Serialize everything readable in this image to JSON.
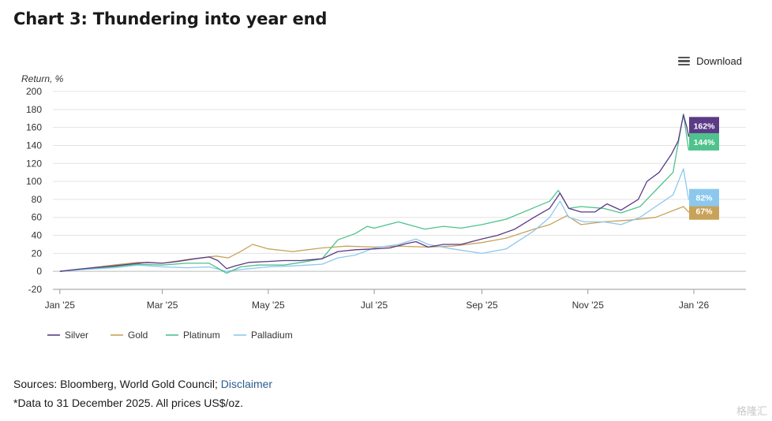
{
  "title": "Chart 3:  Thundering into year end",
  "download_label": "Download",
  "footer": {
    "sources_prefix": "Sources: Bloomberg, World Gold Council; ",
    "disclaimer_link": "Disclaimer",
    "note": "*Data to 31 December 2025. All prices US$/oz."
  },
  "watermark": "格隆汇",
  "chart_data": {
    "type": "line",
    "title": "",
    "ylabel": "Return, %",
    "xlabel": "",
    "ylim": [
      -20,
      200
    ],
    "yticks": [
      -20,
      0,
      20,
      40,
      60,
      80,
      100,
      120,
      140,
      160,
      180,
      200
    ],
    "xlim": [
      "2024-12-28",
      "2026-01-31"
    ],
    "xticks": [
      {
        "date": "2025-01-01",
        "label": "Jan '25"
      },
      {
        "date": "2025-03-01",
        "label": "Mar '25"
      },
      {
        "date": "2025-05-01",
        "label": "May '25"
      },
      {
        "date": "2025-07-01",
        "label": "Jul '25"
      },
      {
        "date": "2025-09-01",
        "label": "Sep '25"
      },
      {
        "date": "2025-11-01",
        "label": "Nov '25"
      },
      {
        "date": "2026-01-01",
        "label": "Jan '26"
      }
    ],
    "grid": true,
    "legend": "bottom-left",
    "series": [
      {
        "name": "Silver",
        "color": "#5b3a86",
        "end_label": "162%",
        "points": [
          [
            "2025-01-01",
            0
          ],
          [
            "2025-01-10",
            2
          ],
          [
            "2025-01-20",
            4
          ],
          [
            "2025-02-01",
            6
          ],
          [
            "2025-02-10",
            8
          ],
          [
            "2025-02-20",
            10
          ],
          [
            "2025-03-01",
            9
          ],
          [
            "2025-03-10",
            11
          ],
          [
            "2025-03-20",
            14
          ],
          [
            "2025-03-28",
            16
          ],
          [
            "2025-04-02",
            12
          ],
          [
            "2025-04-07",
            3
          ],
          [
            "2025-04-12",
            6
          ],
          [
            "2025-04-20",
            10
          ],
          [
            "2025-05-01",
            11
          ],
          [
            "2025-05-10",
            12
          ],
          [
            "2025-05-20",
            12
          ],
          [
            "2025-06-01",
            14
          ],
          [
            "2025-06-10",
            22
          ],
          [
            "2025-06-20",
            24
          ],
          [
            "2025-07-01",
            25
          ],
          [
            "2025-07-10",
            26
          ],
          [
            "2025-07-20",
            31
          ],
          [
            "2025-07-25",
            33
          ],
          [
            "2025-08-01",
            27
          ],
          [
            "2025-08-10",
            30
          ],
          [
            "2025-08-20",
            30
          ],
          [
            "2025-09-01",
            36
          ],
          [
            "2025-09-10",
            40
          ],
          [
            "2025-09-20",
            47
          ],
          [
            "2025-10-01",
            60
          ],
          [
            "2025-10-10",
            70
          ],
          [
            "2025-10-16",
            87
          ],
          [
            "2025-10-21",
            70
          ],
          [
            "2025-10-28",
            66
          ],
          [
            "2025-11-05",
            66
          ],
          [
            "2025-11-12",
            75
          ],
          [
            "2025-11-20",
            68
          ],
          [
            "2025-11-30",
            80
          ],
          [
            "2025-12-05",
            100
          ],
          [
            "2025-12-12",
            110
          ],
          [
            "2025-12-19",
            130
          ],
          [
            "2025-12-23",
            145
          ],
          [
            "2025-12-26",
            174
          ],
          [
            "2025-12-28",
            160
          ],
          [
            "2025-12-29",
            150
          ],
          [
            "2025-12-31",
            162
          ]
        ]
      },
      {
        "name": "Gold",
        "color": "#c9a25a",
        "end_label": "67%",
        "points": [
          [
            "2025-01-01",
            0
          ],
          [
            "2025-01-15",
            3
          ],
          [
            "2025-02-01",
            7
          ],
          [
            "2025-02-15",
            10
          ],
          [
            "2025-03-01",
            9
          ],
          [
            "2025-03-15",
            13
          ],
          [
            "2025-04-01",
            17
          ],
          [
            "2025-04-08",
            15
          ],
          [
            "2025-04-15",
            22
          ],
          [
            "2025-04-22",
            30
          ],
          [
            "2025-05-01",
            25
          ],
          [
            "2025-05-15",
            22
          ],
          [
            "2025-06-01",
            26
          ],
          [
            "2025-06-15",
            28
          ],
          [
            "2025-07-01",
            27
          ],
          [
            "2025-07-15",
            28
          ],
          [
            "2025-08-01",
            27
          ],
          [
            "2025-08-15",
            28
          ],
          [
            "2025-09-01",
            32
          ],
          [
            "2025-09-15",
            37
          ],
          [
            "2025-10-01",
            47
          ],
          [
            "2025-10-10",
            52
          ],
          [
            "2025-10-20",
            62
          ],
          [
            "2025-10-28",
            52
          ],
          [
            "2025-11-10",
            55
          ],
          [
            "2025-11-25",
            57
          ],
          [
            "2025-12-10",
            60
          ],
          [
            "2025-12-26",
            72
          ],
          [
            "2025-12-29",
            66
          ],
          [
            "2025-12-31",
            67
          ]
        ]
      },
      {
        "name": "Platinum",
        "color": "#4fc28d",
        "end_label": "144%",
        "points": [
          [
            "2025-01-01",
            0
          ],
          [
            "2025-01-15",
            3
          ],
          [
            "2025-02-01",
            5
          ],
          [
            "2025-02-15",
            8
          ],
          [
            "2025-03-01",
            7
          ],
          [
            "2025-03-15",
            9
          ],
          [
            "2025-03-28",
            9
          ],
          [
            "2025-04-07",
            -2
          ],
          [
            "2025-04-15",
            5
          ],
          [
            "2025-04-25",
            7
          ],
          [
            "2025-05-10",
            7
          ],
          [
            "2025-05-20",
            10
          ],
          [
            "2025-06-01",
            14
          ],
          [
            "2025-06-10",
            35
          ],
          [
            "2025-06-20",
            42
          ],
          [
            "2025-06-27",
            50
          ],
          [
            "2025-07-01",
            48
          ],
          [
            "2025-07-15",
            55
          ],
          [
            "2025-07-30",
            47
          ],
          [
            "2025-08-10",
            50
          ],
          [
            "2025-08-20",
            48
          ],
          [
            "2025-09-01",
            52
          ],
          [
            "2025-09-15",
            58
          ],
          [
            "2025-09-30",
            70
          ],
          [
            "2025-10-10",
            78
          ],
          [
            "2025-10-15",
            90
          ],
          [
            "2025-10-21",
            70
          ],
          [
            "2025-10-28",
            72
          ],
          [
            "2025-11-10",
            70
          ],
          [
            "2025-11-20",
            65
          ],
          [
            "2025-12-01",
            72
          ],
          [
            "2025-12-10",
            90
          ],
          [
            "2025-12-20",
            110
          ],
          [
            "2025-12-26",
            175
          ],
          [
            "2025-12-29",
            135
          ],
          [
            "2025-12-31",
            144
          ]
        ]
      },
      {
        "name": "Palladium",
        "color": "#8cc8ee",
        "end_label": "82%",
        "points": [
          [
            "2025-01-01",
            0
          ],
          [
            "2025-01-15",
            2
          ],
          [
            "2025-02-01",
            4
          ],
          [
            "2025-02-15",
            7
          ],
          [
            "2025-03-01",
            5
          ],
          [
            "2025-03-15",
            4
          ],
          [
            "2025-03-28",
            5
          ],
          [
            "2025-04-07",
            0
          ],
          [
            "2025-04-15",
            2
          ],
          [
            "2025-05-01",
            5
          ],
          [
            "2025-05-15",
            6
          ],
          [
            "2025-06-01",
            8
          ],
          [
            "2025-06-10",
            15
          ],
          [
            "2025-06-20",
            18
          ],
          [
            "2025-07-01",
            26
          ],
          [
            "2025-07-15",
            30
          ],
          [
            "2025-07-25",
            36
          ],
          [
            "2025-08-01",
            30
          ],
          [
            "2025-08-15",
            25
          ],
          [
            "2025-09-01",
            20
          ],
          [
            "2025-09-15",
            25
          ],
          [
            "2025-10-01",
            45
          ],
          [
            "2025-10-10",
            60
          ],
          [
            "2025-10-16",
            78
          ],
          [
            "2025-10-21",
            60
          ],
          [
            "2025-10-30",
            55
          ],
          [
            "2025-11-10",
            55
          ],
          [
            "2025-11-20",
            52
          ],
          [
            "2025-12-01",
            60
          ],
          [
            "2025-12-10",
            72
          ],
          [
            "2025-12-20",
            85
          ],
          [
            "2025-12-26",
            114
          ],
          [
            "2025-12-29",
            80
          ],
          [
            "2025-12-31",
            82
          ]
        ]
      }
    ]
  }
}
